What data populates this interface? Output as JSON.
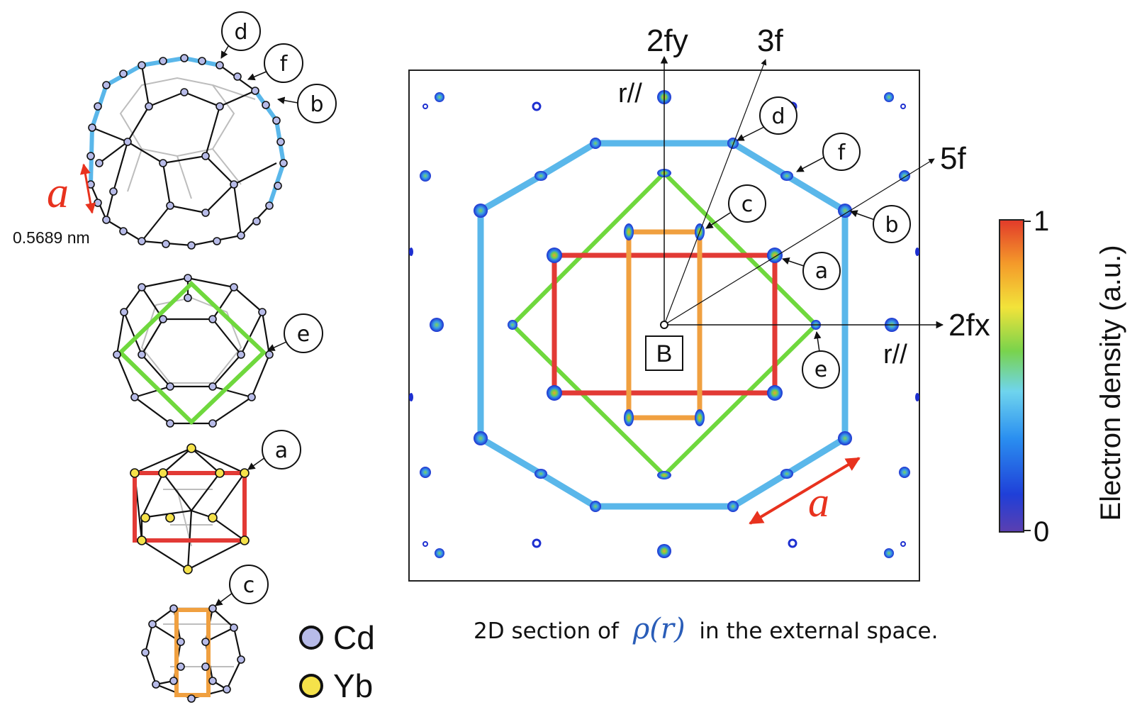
{
  "map": {
    "axis_2fy": "2fy",
    "axis_3f": "3f",
    "axis_5f": "5f",
    "axis_2fx": "2fx",
    "r_parallel": "r//",
    "center_label": "B",
    "edge_label": "a",
    "markers": [
      "a",
      "b",
      "c",
      "d",
      "e",
      "f"
    ]
  },
  "colorbar": {
    "max": "1",
    "min": "0",
    "label": "Electron density (a.u.)",
    "colors": [
      "#5b3fb0",
      "#1f3fd8",
      "#2a8ff0",
      "#6fd4ee",
      "#79d34c",
      "#f2e33a",
      "#f49a2a",
      "#e23a2a"
    ]
  },
  "clusters": {
    "edge_label": "a",
    "edge_length": "0.5689 nm",
    "markers": [
      "d",
      "f",
      "b",
      "e",
      "a",
      "c"
    ]
  },
  "legend": [
    {
      "label": "Cd",
      "color": "#b7bbe8"
    },
    {
      "label": "Yb",
      "color": "#f5e24a"
    }
  ],
  "caption": {
    "prefix": "2D section of",
    "symbol": "ρ(r)",
    "suffix": "in the external space."
  },
  "colors": {
    "blue_shell": "#5ab7ea",
    "green_shell": "#6fd83d",
    "red_shell": "#e23a35",
    "orange_shell": "#f0a040",
    "arrow_red": "#e8321e"
  }
}
